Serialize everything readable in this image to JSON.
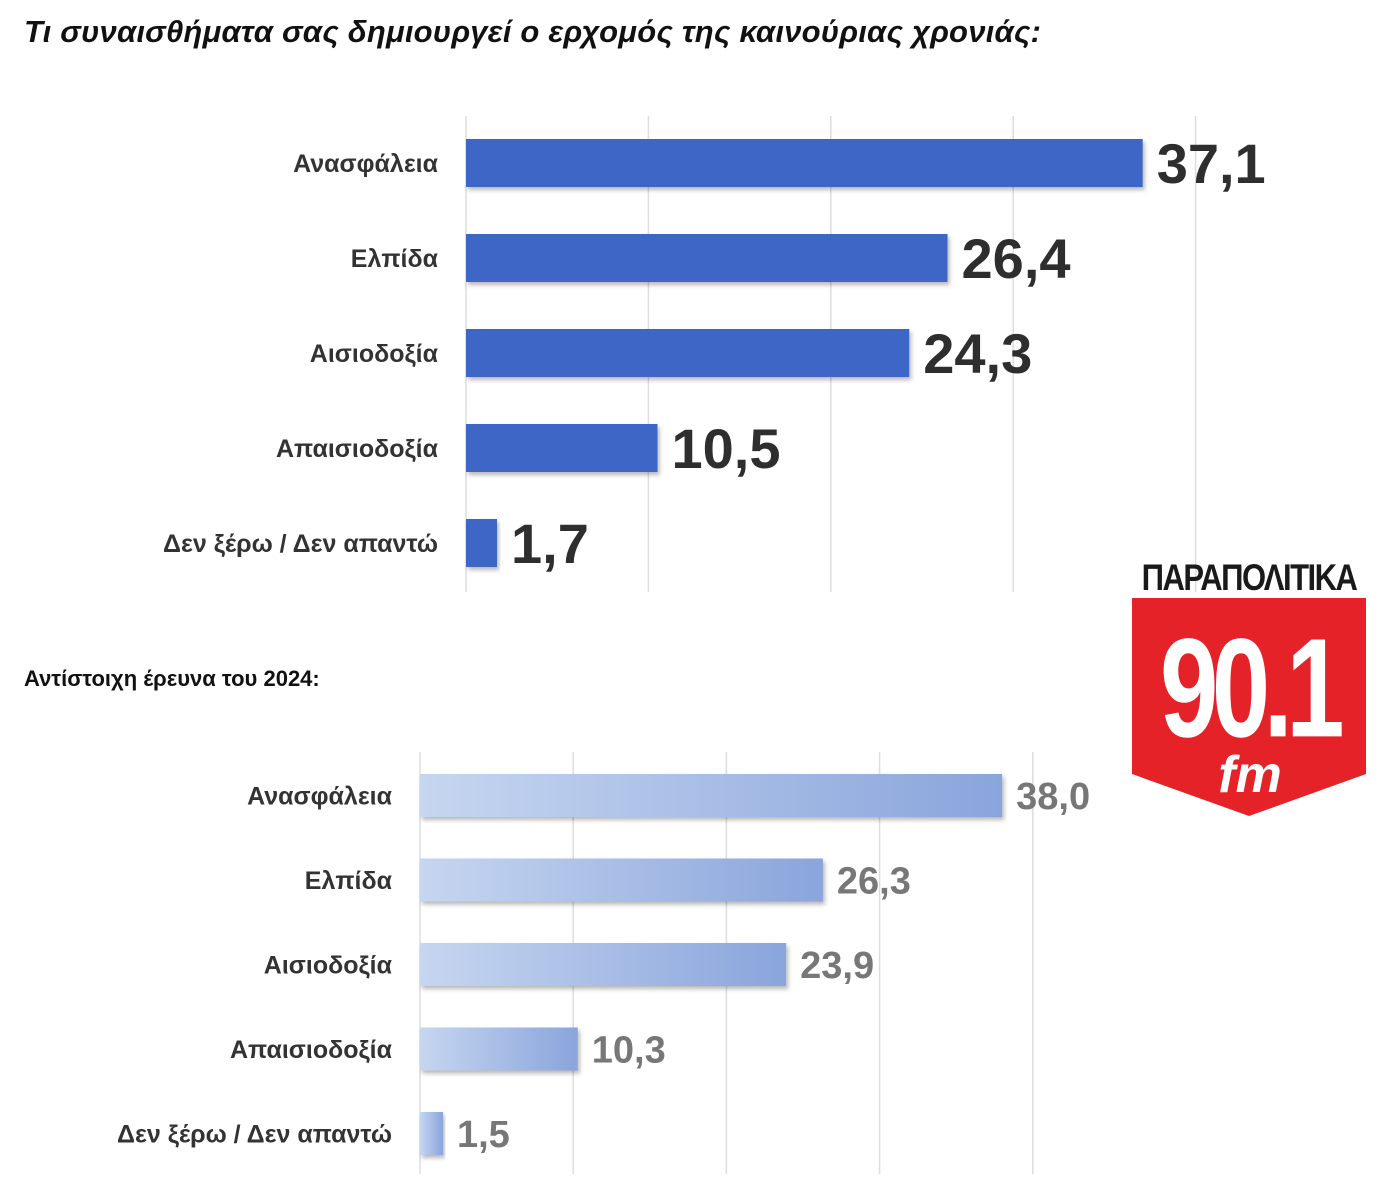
{
  "header": {
    "title": "Τι συναισθήματα σας δημιουργεί ο ερχομός της καινούριας χρονιάς:",
    "subtitle": "Αντίστοιχη έρευνα του 2024:"
  },
  "logo": {
    "name": "ΠΑΡΑΠΟΛΙΤΙΚΑ",
    "frequency": "90.1",
    "band": "fm",
    "colors": {
      "shield": "#e52228",
      "text": "#ffffff",
      "name": "#1a1a1a"
    }
  },
  "chart_data": [
    {
      "type": "bar",
      "orientation": "horizontal",
      "categories": [
        "Ανασφάλεια",
        "Ελπίδα",
        "Αισιοδοξία",
        "Απαισιοδοξία",
        "Δεν ξέρω / Δεν απαντώ"
      ],
      "values": [
        37.1,
        26.4,
        24.3,
        10.5,
        1.7
      ],
      "value_labels": [
        "37,1",
        "26,4",
        "24,3",
        "10,5",
        "1,7"
      ],
      "xlim": [
        0,
        40
      ],
      "grid": true,
      "colors": {
        "bar": "#3c66c7",
        "label": "#333333",
        "value": "#2e2e2e"
      }
    },
    {
      "type": "bar",
      "orientation": "horizontal",
      "categories": [
        "Ανασφάλεια",
        "Ελπίδα",
        "Αισιοδοξία",
        "Απαισιοδοξία",
        "Δεν ξέρω / Δεν απαντώ"
      ],
      "values": [
        38.0,
        26.3,
        23.9,
        10.3,
        1.5
      ],
      "value_labels": [
        "38,0",
        "26,3",
        "23,9",
        "10,3",
        "1,5"
      ],
      "xlim": [
        0,
        40
      ],
      "grid": true,
      "colors": {
        "bar_start": "#c6d6f0",
        "bar_end": "#8aa5dc",
        "label": "#333333",
        "value": "#777777"
      }
    }
  ]
}
